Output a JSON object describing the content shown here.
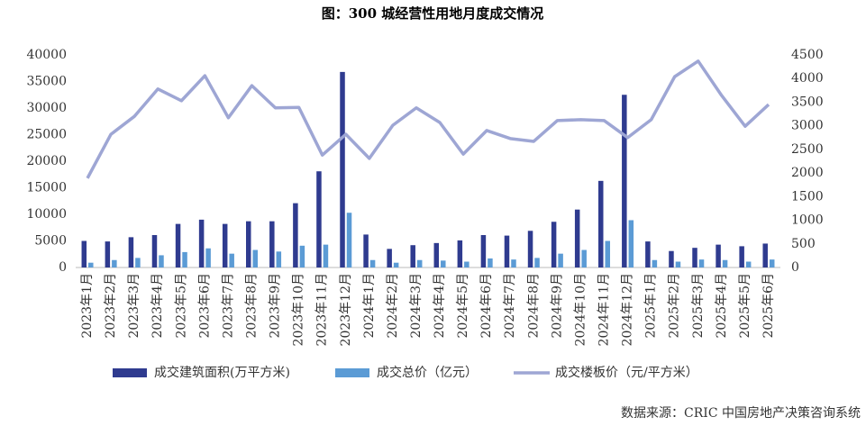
{
  "chart_data": {
    "type": "bar-line",
    "title": "图：300 城经营性用地月度成交情况",
    "categories": [
      "2023年1月",
      "2023年2月",
      "2023年3月",
      "2023年4月",
      "2023年5月",
      "2023年6月",
      "2023年7月",
      "2023年8月",
      "2023年9月",
      "2023年10月",
      "2023年11月",
      "2023年12月",
      "2024年1月",
      "2024年2月",
      "2024年3月",
      "2024年4月",
      "2024年5月",
      "2024年6月",
      "2024年7月",
      "2024年8月",
      "2024年9月",
      "2024年10月",
      "2024年11月",
      "2024年12月",
      "2025年1月",
      "2025年2月",
      "2025年3月",
      "2025年4月",
      "2025年5月",
      "2025年6月"
    ],
    "series": [
      {
        "name": "成交建筑面积(万平方米)",
        "type": "bar",
        "color": "#2f3b8f",
        "values": [
          5000,
          4900,
          5700,
          6100,
          8200,
          9000,
          8200,
          8700,
          8700,
          12100,
          18100,
          36800,
          6200,
          3500,
          4200,
          4600,
          5100,
          6100,
          6000,
          6900,
          8600,
          10900,
          16300,
          32500,
          4900,
          3100,
          3700,
          4300,
          4000,
          4500
        ]
      },
      {
        "name": "成交总价（亿元）",
        "type": "bar",
        "color": "#5b9bd5",
        "values": [
          900,
          1400,
          1800,
          2300,
          2900,
          3600,
          2600,
          3300,
          3000,
          4100,
          4300,
          10300,
          1400,
          900,
          1400,
          1300,
          1100,
          1700,
          1500,
          1800,
          2600,
          3300,
          5000,
          8900,
          1400,
          1100,
          1500,
          1400,
          1100,
          1500
        ]
      },
      {
        "name": "成交楼板价（元/平方米）",
        "type": "line",
        "axis": "y2",
        "color": "#9ea6d4",
        "values": [
          1890,
          2820,
          3200,
          3780,
          3530,
          4060,
          3170,
          3850,
          3380,
          3390,
          2380,
          2820,
          2310,
          3010,
          3380,
          3070,
          2400,
          2900,
          2730,
          2670,
          3110,
          3130,
          3110,
          2750,
          3130,
          4040,
          4370,
          3640,
          2990,
          3450
        ]
      }
    ],
    "ylim": [
      0,
      40000
    ],
    "yticks": [
      0,
      5000,
      10000,
      15000,
      20000,
      25000,
      30000,
      35000,
      40000
    ],
    "y2lim": [
      0,
      4500
    ],
    "y2ticks": [
      0,
      500,
      1000,
      1500,
      2000,
      2500,
      3000,
      3500,
      4000,
      4500
    ],
    "source": "数据来源：CRIC 中国房地产决策咨询系统"
  }
}
